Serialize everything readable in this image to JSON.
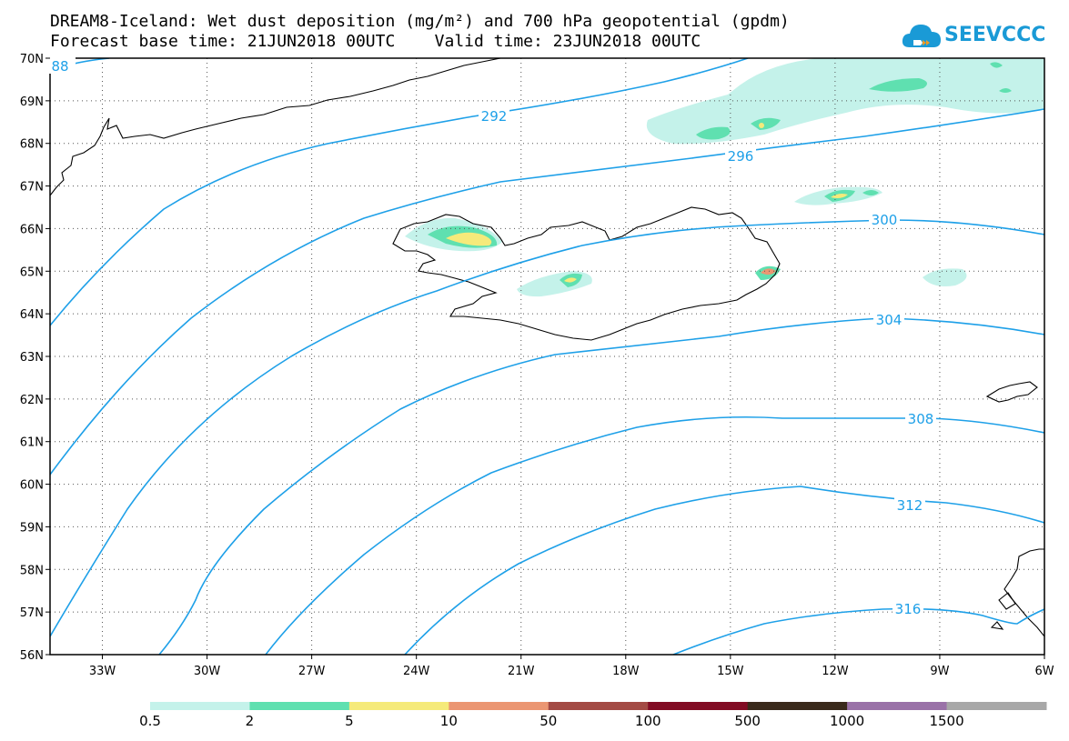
{
  "header": {
    "title_line1": "DREAM8-Iceland: Wet dust deposition (mg/m²) and 700 hPa geopotential (gpdm)",
    "title_line2": "Forecast base time: 21JUN2018 00UTC    Valid time: 23JUN2018 00UTC"
  },
  "logo": {
    "text": "SEEVCCC",
    "icon": "cloud-logo-icon",
    "color": "#1a9ad6"
  },
  "map": {
    "lon_range": [
      -34.5,
      -6
    ],
    "lat_range": [
      56,
      70
    ],
    "lat_labels": [
      "56N",
      "57N",
      "58N",
      "59N",
      "60N",
      "61N",
      "62N",
      "63N",
      "64N",
      "65N",
      "66N",
      "67N",
      "68N",
      "69N",
      "70N"
    ],
    "lon_labels": [
      "33W",
      "30W",
      "27W",
      "24W",
      "21W",
      "18W",
      "15W",
      "12W",
      "9W",
      "6W"
    ],
    "contour_color": "#1ea0e8",
    "contour_labels": [
      "88",
      "292",
      "296",
      "300",
      "304",
      "308",
      "312",
      "316"
    ]
  },
  "legend": {
    "colors": [
      "#c4f2ea",
      "#5fe0b0",
      "#f5ea7a",
      "#eb9672",
      "#a34a44",
      "#820c24",
      "#3a2a1c",
      "#9a72a8",
      "#a8a8a8"
    ],
    "labels": [
      "0.5",
      "2",
      "5",
      "10",
      "50",
      "100",
      "500",
      "1000",
      "1500"
    ]
  }
}
